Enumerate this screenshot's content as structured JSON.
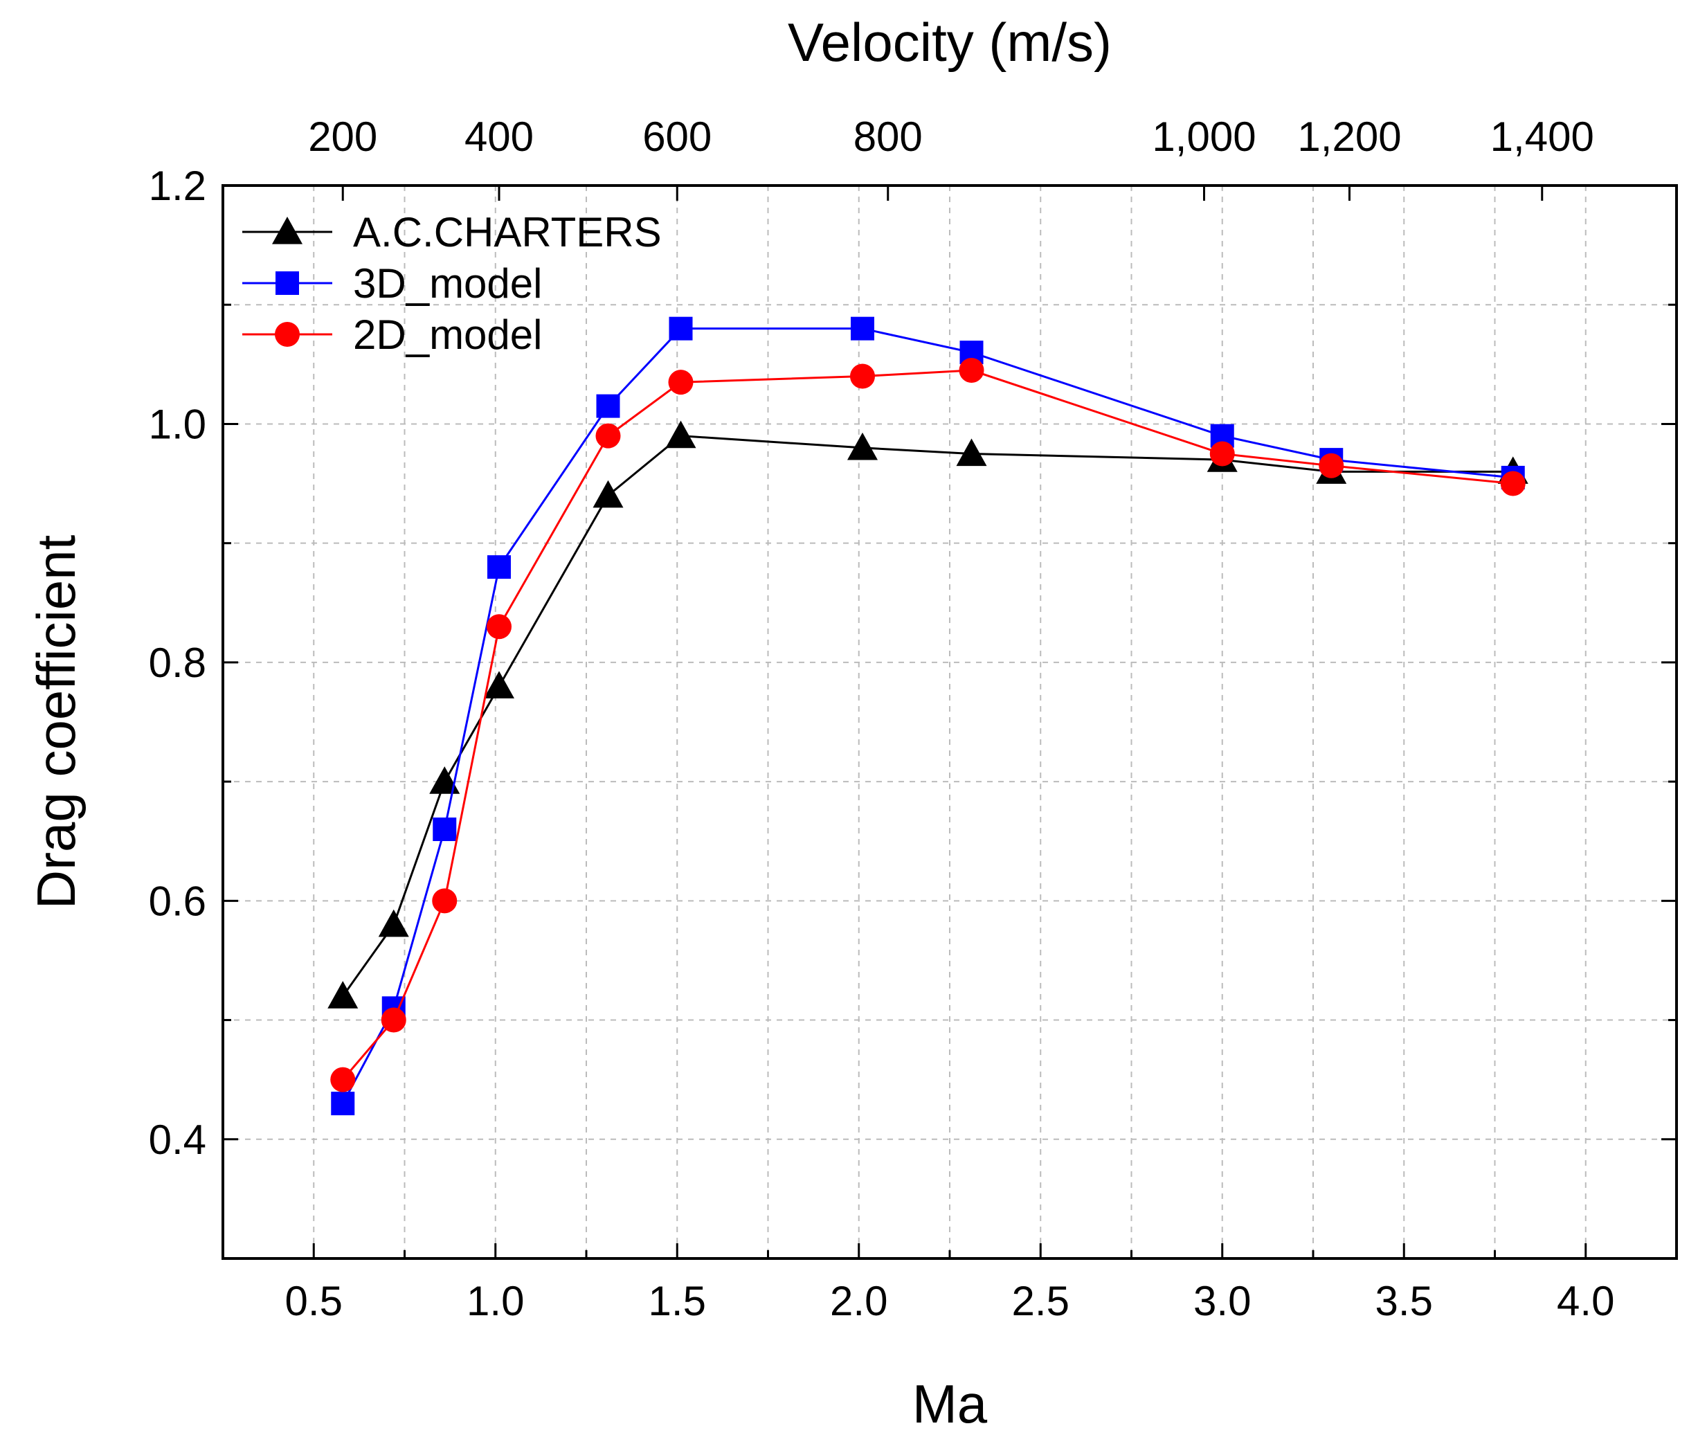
{
  "chart_data": {
    "type": "line",
    "xlabel": "Ma",
    "x2label": "Velocity (m/s)",
    "ylabel": "Drag coefficient",
    "xlim": [
      0.25,
      4.25
    ],
    "ylim": [
      0.3,
      1.2
    ],
    "x_ticks": [
      {
        "value": 0.5,
        "label": "0.5"
      },
      {
        "value": 1.0,
        "label": "1.0"
      },
      {
        "value": 1.5,
        "label": "1.5"
      },
      {
        "value": 2.0,
        "label": "2.0"
      },
      {
        "value": 2.5,
        "label": "2.5"
      },
      {
        "value": 3.0,
        "label": "3.0"
      },
      {
        "value": 3.5,
        "label": "3.5"
      },
      {
        "value": 4.0,
        "label": "4.0"
      }
    ],
    "y_ticks": [
      {
        "value": 0.4,
        "label": "0.4"
      },
      {
        "value": 0.6,
        "label": "0.6"
      },
      {
        "value": 0.8,
        "label": "0.8"
      },
      {
        "value": 1.0,
        "label": "1.0"
      },
      {
        "value": 1.2,
        "label": "1.2"
      }
    ],
    "x2_ticks": [
      {
        "ma": 0.58,
        "label": "200"
      },
      {
        "ma": 1.01,
        "label": "400"
      },
      {
        "ma": 1.5,
        "label": "600"
      },
      {
        "ma": 2.08,
        "label": "800"
      },
      {
        "ma": 2.95,
        "label": "1,000"
      },
      {
        "ma": 3.35,
        "label": "1,200"
      },
      {
        "ma": 3.88,
        "label": "1,400"
      }
    ],
    "grid": true,
    "legend_position": "top-left",
    "series": [
      {
        "name": "A.C.CHARTERS",
        "color": "#000000",
        "marker": "triangle",
        "x": [
          0.58,
          0.72,
          0.86,
          1.01,
          1.31,
          1.51,
          2.01,
          2.31,
          3.0,
          3.3,
          3.8
        ],
        "y": [
          0.52,
          0.58,
          0.7,
          0.78,
          0.94,
          0.99,
          0.98,
          0.975,
          0.97,
          0.96,
          0.96
        ]
      },
      {
        "name": "3D_model",
        "color": "#0000ff",
        "marker": "square",
        "x": [
          0.58,
          0.72,
          0.86,
          1.01,
          1.31,
          1.51,
          2.01,
          2.31,
          3.0,
          3.3,
          3.8
        ],
        "y": [
          0.43,
          0.51,
          0.66,
          0.88,
          1.015,
          1.08,
          1.08,
          1.06,
          0.99,
          0.97,
          0.955
        ]
      },
      {
        "name": "2D_model",
        "color": "#ff0000",
        "marker": "circle",
        "x": [
          0.58,
          0.72,
          0.86,
          1.01,
          1.31,
          1.51,
          2.01,
          2.31,
          3.0,
          3.3,
          3.8
        ],
        "y": [
          0.45,
          0.5,
          0.6,
          0.83,
          0.99,
          1.035,
          1.04,
          1.045,
          0.975,
          0.965,
          0.95
        ]
      }
    ]
  }
}
